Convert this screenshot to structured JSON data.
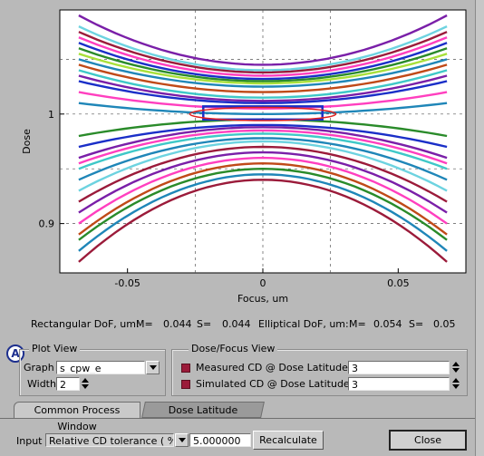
{
  "chart_data": {
    "type": "line",
    "xlabel": "Focus, um",
    "ylabel": "Dose",
    "xlim": [
      -0.075,
      0.075
    ],
    "ylim": [
      0.855,
      1.095
    ],
    "x_ticks": [
      {
        "value": -0.05,
        "label": "-0.05"
      },
      {
        "value": 0,
        "label": "0"
      },
      {
        "value": 0.05,
        "label": "0.05"
      }
    ],
    "y_ticks": [
      {
        "value": 0.9,
        "label": "0.9"
      },
      {
        "value": 1.0,
        "label": "1"
      }
    ],
    "dashed_gridlines_y": [
      0.9,
      0.95,
      1.0,
      1.05
    ],
    "dashed_gridlines_x": [
      -0.025,
      0.025
    ],
    "upper_curves": [
      {
        "color": "#7a1fa8",
        "center": 1.045,
        "edge": 1.09
      },
      {
        "color": "#6dd3e0",
        "center": 1.04,
        "edge": 1.08
      },
      {
        "color": "#9b1b3a",
        "center": 1.038,
        "edge": 1.075
      },
      {
        "color": "#ff3fbf",
        "center": 1.035,
        "edge": 1.07
      },
      {
        "color": "#1a2fc8",
        "center": 1.032,
        "edge": 1.065
      },
      {
        "color": "#2a8b2a",
        "center": 1.03,
        "edge": 1.06
      },
      {
        "color": "#a8e03a",
        "center": 1.028,
        "edge": 1.055
      },
      {
        "color": "#1f86b8",
        "center": 1.025,
        "edge": 1.05
      },
      {
        "color": "#c04a18",
        "center": 1.02,
        "edge": 1.045
      },
      {
        "color": "#3fc8c8",
        "center": 1.015,
        "edge": 1.04
      },
      {
        "color": "#7a1fa8",
        "center": 1.012,
        "edge": 1.035
      },
      {
        "color": "#1a2fc8",
        "center": 1.01,
        "edge": 1.03
      },
      {
        "color": "#ff3fbf",
        "center": 1.005,
        "edge": 1.02
      },
      {
        "color": "#1f86b8",
        "center": 1.0,
        "edge": 1.01
      }
    ],
    "lower_curves": [
      {
        "color": "#2a8b2a",
        "center": 0.995,
        "edge": 0.98
      },
      {
        "color": "#1a2fc8",
        "center": 0.99,
        "edge": 0.97
      },
      {
        "color": "#7a1fa8",
        "center": 0.988,
        "edge": 0.96
      },
      {
        "color": "#ff3fbf",
        "center": 0.985,
        "edge": 0.955
      },
      {
        "color": "#3fc8c8",
        "center": 0.982,
        "edge": 0.95
      },
      {
        "color": "#1f86b8",
        "center": 0.978,
        "edge": 0.94
      },
      {
        "color": "#6dd3e0",
        "center": 0.975,
        "edge": 0.93
      },
      {
        "color": "#9b1b3a",
        "center": 0.97,
        "edge": 0.92
      },
      {
        "color": "#7a1fa8",
        "center": 0.965,
        "edge": 0.91
      },
      {
        "color": "#ff3fbf",
        "center": 0.96,
        "edge": 0.9
      },
      {
        "color": "#c04a18",
        "center": 0.955,
        "edge": 0.89
      },
      {
        "color": "#2a8b2a",
        "center": 0.95,
        "edge": 0.885
      },
      {
        "color": "#1f86b8",
        "center": 0.945,
        "edge": 0.875
      },
      {
        "color": "#9b1b3a",
        "center": 0.94,
        "edge": 0.865
      }
    ],
    "rectangle": {
      "x0": -0.022,
      "x1": 0.022,
      "y0": 0.995,
      "y1": 1.007,
      "color": "#1a2fc8"
    },
    "ellipse": {
      "cx": 0,
      "cy": 1.0,
      "rx": 0.027,
      "ry": 0.006,
      "color": "#e02020"
    }
  },
  "dof": {
    "rect_label": "Rectangular DoF, um:",
    "rect_m_label": "M=",
    "rect_m": "0.044",
    "rect_s_label": "S=",
    "rect_s": "0.044",
    "ell_label": "Elliptical DoF, um:",
    "ell_m_label": "M=",
    "ell_m": "0.054",
    "ell_s_label": "S=",
    "ell_s": "0.05"
  },
  "callout": "A",
  "plot_view": {
    "title": "Plot View",
    "graph_label": "Graph",
    "graph_value": "s_cpw_e",
    "width_label": "Width",
    "width_value": "2"
  },
  "dose_focus_view": {
    "title": "Dose/Focus View",
    "measured_label": "Measured CD @ Dose Latitude, %",
    "measured_value": "3",
    "simulated_label": "Simulated CD @ Dose Latitude, %",
    "simulated_value": "3",
    "swatch_color": "#9b1b3a"
  },
  "tabs": [
    {
      "label": "Common Process Window"
    },
    {
      "label": "Dose Latitude"
    }
  ],
  "footer": {
    "input_label": "Input",
    "input_select": "Relative CD tolerance ( %)",
    "input_value": "5.000000",
    "recalc_label": "Recalculate",
    "close_label": "Close"
  }
}
